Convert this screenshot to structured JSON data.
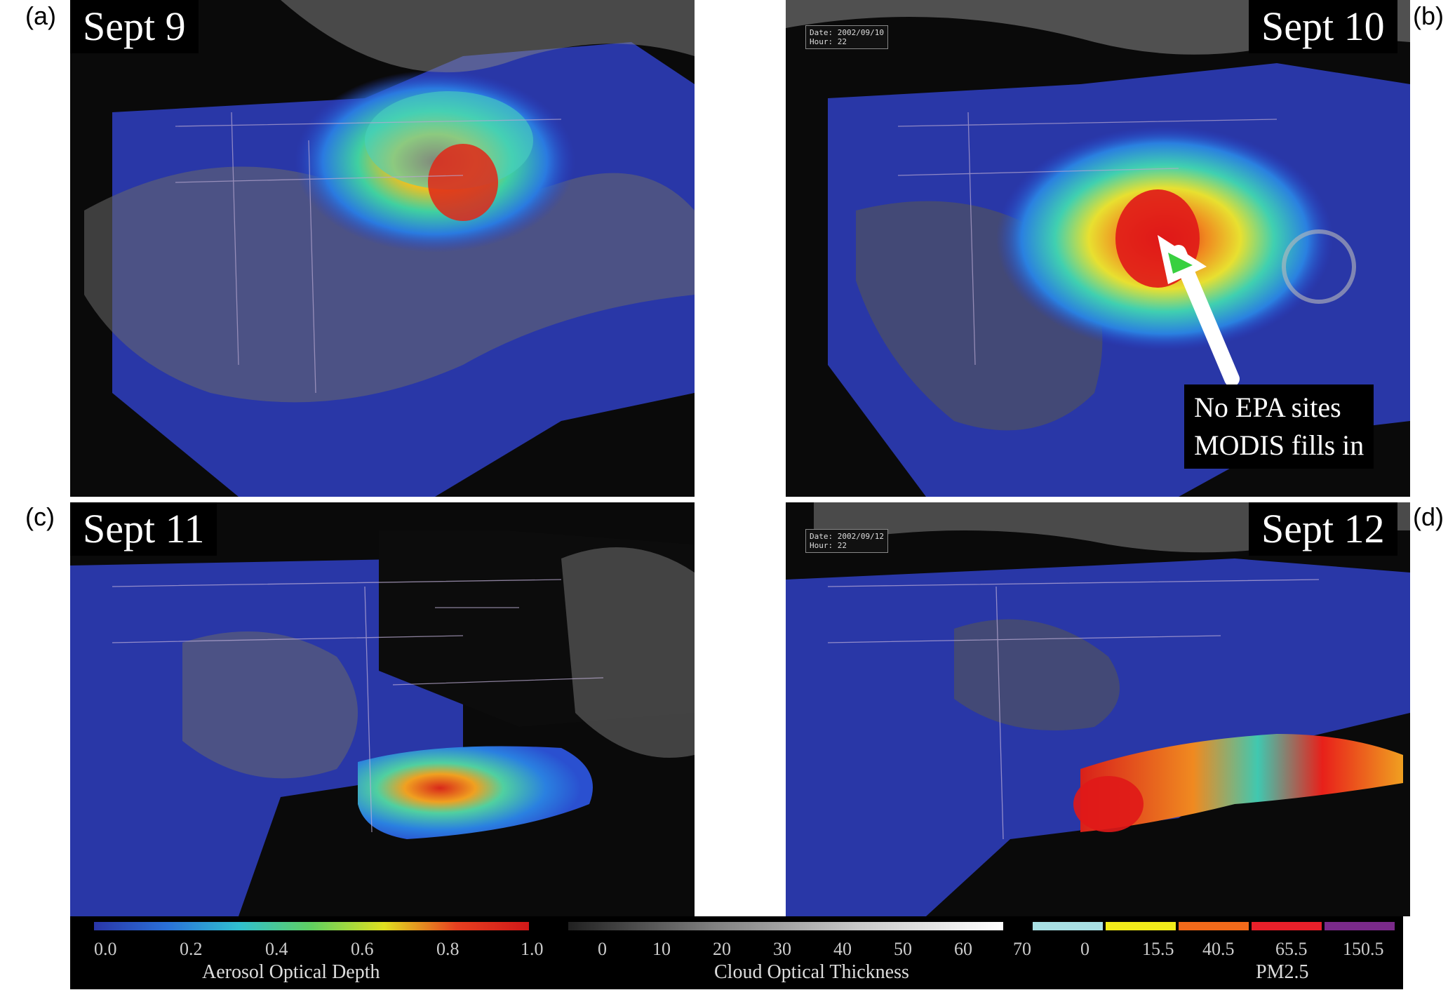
{
  "panels": [
    {
      "letter": "(a)",
      "date": "Sept 9"
    },
    {
      "letter": "(b)",
      "date": "Sept 10",
      "stamp_date": "Date: 2002/09/10",
      "stamp_hour": "Hour: 22",
      "annotation_line1": "No EPA sites",
      "annotation_line2": "MODIS fills in"
    },
    {
      "letter": "(c)",
      "date": "Sept 11"
    },
    {
      "letter": "(d)",
      "date": "Sept 12",
      "stamp_date": "Date: 2002/09/12",
      "stamp_hour": "Hour: 22"
    }
  ],
  "legend": {
    "aod": {
      "title": "Aerosol Optical Depth",
      "ticks": [
        "0.0",
        "0.2",
        "0.4",
        "0.6",
        "0.8",
        "1.0"
      ]
    },
    "cot": {
      "title": "Cloud Optical Thickness",
      "ticks": [
        "0",
        "10",
        "20",
        "30",
        "40",
        "50",
        "60",
        "70"
      ]
    },
    "pm": {
      "title": "PM2.5",
      "ticks": [
        "0",
        "15.5",
        "40.5",
        "65.5",
        "150.5"
      ]
    }
  },
  "colors": {
    "pm_bins": [
      "#a8e0e4",
      "#f2ec1a",
      "#f26a1a",
      "#e8202a",
      "#7a2a8a"
    ]
  }
}
